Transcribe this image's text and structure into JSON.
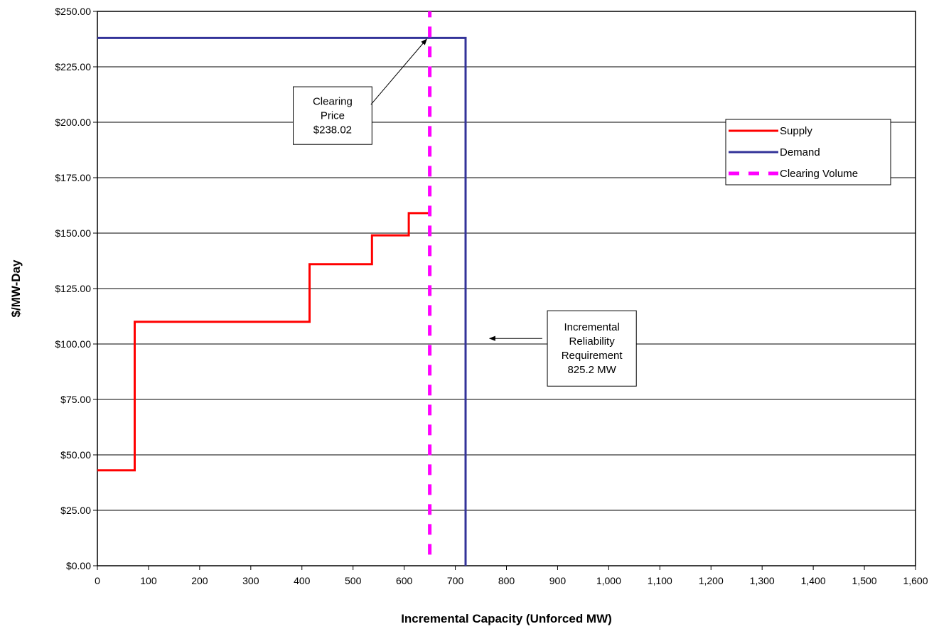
{
  "chart_data": {
    "type": "line",
    "title": "",
    "xlabel": "Incremental Capacity (Unforced MW)",
    "ylabel": "$/MW-Day",
    "xlim": [
      0,
      1600
    ],
    "ylim": [
      0,
      250
    ],
    "x_ticks": [
      0,
      100,
      200,
      300,
      400,
      500,
      600,
      700,
      800,
      900,
      1000,
      1100,
      1200,
      1300,
      1400,
      1500,
      1600
    ],
    "x_tick_labels": [
      "0",
      "100",
      "200",
      "300",
      "400",
      "500",
      "600",
      "700",
      "800",
      "900",
      "1,000",
      "1,100",
      "1,200",
      "1,300",
      "1,400",
      "1,500",
      "1,600"
    ],
    "y_ticks": [
      0,
      25,
      50,
      75,
      100,
      125,
      150,
      175,
      200,
      225,
      250
    ],
    "y_tick_labels": [
      "$0.00",
      "$25.00",
      "$50.00",
      "$75.00",
      "$100.00",
      "$125.00",
      "$150.00",
      "$175.00",
      "$200.00",
      "$225.00",
      "$250.00"
    ],
    "grid": "horizontal",
    "legend_position": "right",
    "series": [
      {
        "name": "Supply",
        "color": "#ff0000",
        "style": "solid",
        "x": [
          0,
          73,
          73,
          415,
          415,
          537,
          537,
          609,
          609,
          651
        ],
        "y": [
          43,
          43,
          110,
          110,
          136,
          136,
          149,
          149,
          159,
          159
        ]
      },
      {
        "name": "Demand",
        "color": "#333399",
        "style": "solid",
        "x": [
          0,
          720,
          720
        ],
        "y": [
          238,
          238,
          0
        ]
      },
      {
        "name": "Clearing Volume",
        "color": "#ff00ff",
        "style": "dashed",
        "x": [
          650,
          650
        ],
        "y": [
          5,
          250
        ]
      }
    ],
    "annotations": [
      {
        "name": "clearing-price",
        "lines": [
          "Clearing",
          "Price",
          "$238.02"
        ],
        "box": {
          "x1": 383,
          "x2": 537,
          "y_top": 216,
          "y_bottom": 190
        },
        "arrow_from": [
          535,
          208
        ],
        "arrow_to": [
          644,
          237.5
        ]
      },
      {
        "name": "reliability-requirement",
        "lines": [
          "Incremental",
          "Reliability",
          "Requirement",
          "825.2 MW"
        ],
        "box": {
          "x1": 880,
          "x2": 1054,
          "y_top": 115,
          "y_bottom": 81
        },
        "arrow_from": [
          870,
          102.5
        ],
        "arrow_to": [
          767,
          102.5
        ]
      }
    ]
  }
}
